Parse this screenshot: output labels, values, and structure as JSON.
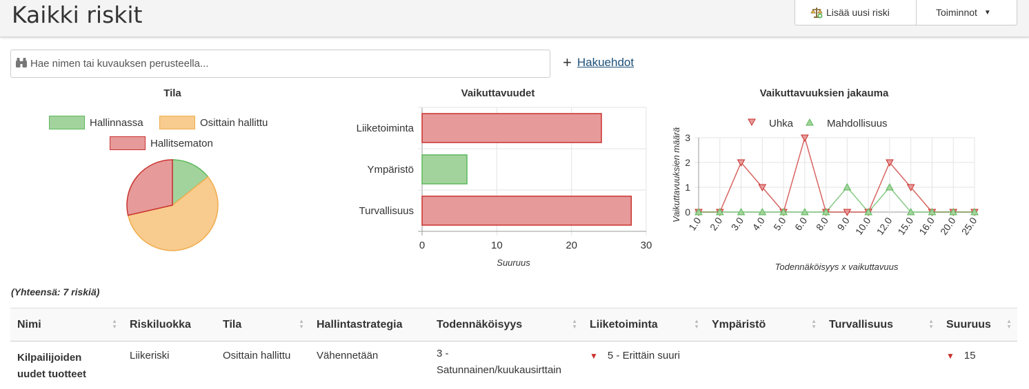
{
  "header": {
    "title": "Kaikki riskit",
    "add_label": "Lisää uusi riski",
    "actions_label": "Toiminnot"
  },
  "search": {
    "placeholder": "Hae nimen tai kuvauksen perusteella...",
    "advanced_label": "Hakuehdot"
  },
  "charts": [
    {
      "type": "pie",
      "title": "Tila",
      "legend": [
        "Hallinnassa",
        "Osittain hallittu",
        "Hallitsematon"
      ],
      "values": [
        1,
        4,
        2
      ],
      "colors": [
        "#a3d39c",
        "#f8cb8e",
        "#e69a9a"
      ],
      "borders": [
        "#5cb85c",
        "#f0ad4e",
        "#c9302c"
      ]
    },
    {
      "type": "bar",
      "orientation": "horizontal",
      "title": "Vaikuttavuudet",
      "categories": [
        "Liiketoiminta",
        "Ympäristö",
        "Turvallisuus"
      ],
      "values": [
        24,
        6,
        28
      ],
      "colors": [
        "#e69a9a",
        "#a3d39c",
        "#e69a9a"
      ],
      "xlabel": "Suuruus",
      "xlim": [
        0,
        30
      ],
      "xticks": [
        "0",
        "10",
        "20",
        "30"
      ]
    },
    {
      "type": "line",
      "title": "Vaikuttavuuksien jakauma",
      "xlabel": "Todennäköisyys x vaikuttavuus",
      "ylabel": "Vaikuttavuuksien määrä",
      "ylim": [
        0,
        3
      ],
      "yticks": [
        "0",
        "1",
        "2",
        "3"
      ],
      "categories": [
        "1.0",
        "2.0",
        "3.0",
        "4.0",
        "5.0",
        "6.0",
        "8.0",
        "9.0",
        "10.0",
        "12.0",
        "15.0",
        "16.0",
        "20.0",
        "25.0"
      ],
      "series": [
        {
          "name": "Uhka",
          "values": [
            0,
            0,
            2,
            1,
            0,
            3,
            0,
            0,
            0,
            2,
            1,
            0,
            0,
            0
          ],
          "color": "#c9302c"
        },
        {
          "name": "Mahdollisuus",
          "values": [
            0,
            0,
            0,
            0,
            0,
            0,
            0,
            1,
            0,
            1,
            0,
            0,
            0,
            0
          ],
          "color": "#5cb85c"
        }
      ]
    }
  ],
  "summary": "(Yhteensä: 7 riskiä)",
  "table": {
    "columns": [
      "Nimi",
      "Riskiluokka",
      "Tila",
      "Hallintastrategia",
      "Todennäköisyys",
      "Liiketoiminta",
      "Ympäristö",
      "Turvallisuus",
      "Suuruus"
    ],
    "rows": [
      {
        "name_line1": "Kilpailijoiden",
        "name_line2": "uudet tuotteet",
        "class": "Liikeriski",
        "status": "Osittain hallittu",
        "strategy": "Vähennetään",
        "prob_line1": "3 -",
        "prob_line2": "Satunnainen/kuukausirttain",
        "business": "5 - Erittäin suuri",
        "environment": "",
        "safety": "",
        "magnitude": "15"
      }
    ]
  }
}
